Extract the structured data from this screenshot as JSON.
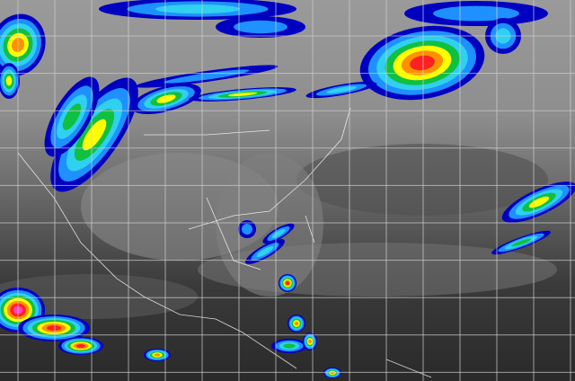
{
  "colors": {
    "cloud_cold": "#0000c0",
    "cloud_blue": "#1e90ff",
    "cloud_cyan": "#30d0f0",
    "cloud_green": "#10c040",
    "cloud_yellow": "#ffff00",
    "cloud_orange": "#ff9000",
    "cloud_red": "#ff2020",
    "cloud_magenta": "#ff40c0",
    "grid": "#d0d0d0",
    "borders": "#ffffff"
  }
}
